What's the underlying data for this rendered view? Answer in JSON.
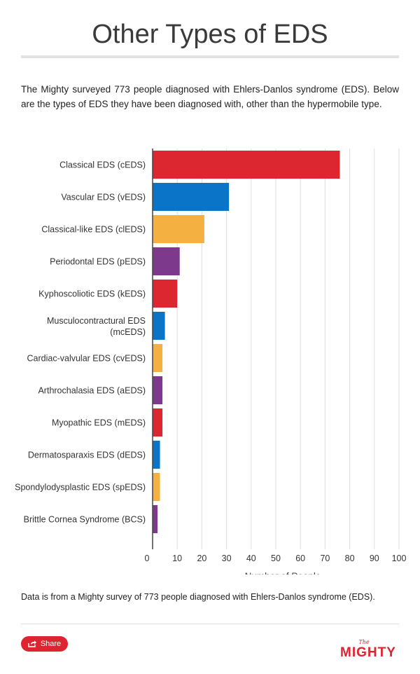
{
  "header": {
    "title": "Other Types of EDS"
  },
  "intro": "The Mighty surveyed 773 people diagnosed with Ehlers-Danlos syndrome (EDS). Below are the types of EDS they have been diagnosed with, other than the hypermobile type.",
  "chart_data": {
    "type": "bar",
    "orientation": "horizontal",
    "categories": [
      "Classical EDS (cEDS)",
      "Vascular EDS (vEDS)",
      "Classical-like EDS (clEDS)",
      "Periodontal EDS (pEDS)",
      "Kyphoscoliotic EDS (kEDS)",
      "Musculocontractural EDS (mcEDS)",
      "Cardiac-valvular EDS (cvEDS)",
      "Arthrochalasia EDS (aEDS)",
      "Myopathic EDS (mEDS)",
      "Dermatosparaxis EDS (dEDS)",
      "Spondylodysplastic EDS (spEDS)",
      "Brittle Cornea Syndrome (BCS)"
    ],
    "values": [
      76,
      31,
      21,
      11,
      10,
      5,
      4,
      4,
      4,
      3,
      3,
      2
    ],
    "bar_colors": [
      "#dc2630",
      "#0a74c9",
      "#f5b042",
      "#7d3a8c",
      "#dc2630",
      "#0a74c9",
      "#f5b042",
      "#7d3a8c",
      "#dc2630",
      "#0a74c9",
      "#f5b042",
      "#7d3a8c"
    ],
    "xlim": [
      0,
      100
    ],
    "x_ticks": [
      "0",
      "10",
      "20",
      "30",
      "40",
      "50",
      "60",
      "70",
      "80",
      "90",
      "100"
    ],
    "xlabel": "Number of People",
    "ylabel": "",
    "grid": true,
    "legend": "none"
  },
  "source_note": "Data is from a Mighty survey of 773 people diagnosed with Ehlers-Danlos syndrome (EDS).",
  "footer": {
    "share_label": "Share",
    "logo_small": "The",
    "logo_main": "MIGHTY",
    "brand_color": "#dc2530"
  }
}
